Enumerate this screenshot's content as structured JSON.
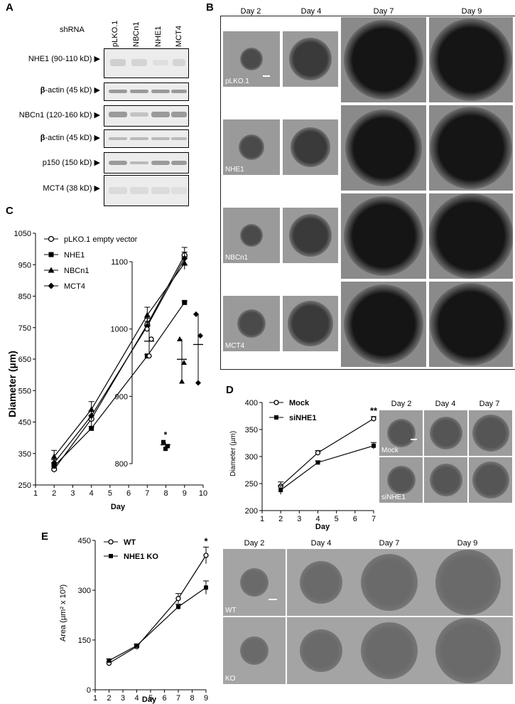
{
  "panelA": {
    "label": "A",
    "shrna_label": "shRNA",
    "lanes": [
      "pLKO.1",
      "NBCn1",
      "NHE1",
      "MCT4"
    ],
    "blots": [
      {
        "label": "NHE1 (90-110 kD) ▶"
      },
      {
        "label_bold": "β",
        "label": "-actin (45 kD) ▶"
      },
      {
        "label": "NBCn1 (120-160 kD) ▶"
      },
      {
        "label_bold": "β",
        "label": "-actin (45 kD) ▶"
      },
      {
        "label": "p150 (150 kD) ▶"
      },
      {
        "label": "MCT4 (38 kD) ▶"
      }
    ]
  },
  "panelB": {
    "label": "B",
    "days": [
      "Day 2",
      "Day 4",
      "Day 7",
      "Day 9"
    ],
    "rows": [
      "pLKO.1",
      "NHE1",
      "NBCn1",
      "MCT4"
    ]
  },
  "panelC": {
    "label": "C",
    "chart_data": {
      "type": "line",
      "xlabel": "Day",
      "ylabel": "Diameter (µm)",
      "xlim": [
        1,
        10
      ],
      "ylim": [
        250,
        1050
      ],
      "xticks": [
        1,
        2,
        3,
        4,
        5,
        6,
        7,
        8,
        9,
        10
      ],
      "yticks": [
        250,
        350,
        450,
        550,
        650,
        750,
        850,
        950,
        1050
      ],
      "x": [
        2,
        4,
        7,
        9
      ],
      "legend_position": "top-left",
      "series": [
        {
          "name": "pLKO.1 empty vector",
          "marker": "open-circle",
          "values": [
            300,
            460,
            760,
            980
          ],
          "errors": [
            10,
            25,
            20,
            25
          ]
        },
        {
          "name": "NHE1",
          "marker": "filled-square",
          "values": [
            310,
            430,
            660,
            830
          ],
          "errors": [
            5,
            5,
            5,
            5
          ]
        },
        {
          "name": "NBCn1",
          "marker": "filled-triangle",
          "values": [
            340,
            490,
            790,
            955
          ],
          "errors": [
            20,
            25,
            25,
            20
          ]
        },
        {
          "name": "MCT4",
          "marker": "filled-diamond",
          "values": [
            320,
            470,
            755,
            970
          ],
          "errors": [
            10,
            15,
            15,
            20
          ]
        }
      ],
      "inset": {
        "ylim": [
          800,
          1100
        ],
        "yticks": [
          800,
          900,
          1000,
          1100
        ],
        "groups": [
          {
            "marker": "open-circle",
            "points": [
              1000,
              985,
              960
            ],
            "mean": 982
          },
          {
            "marker": "filled-square",
            "points": [
              832,
              826,
              822
            ],
            "mean": 828,
            "annotation": "*"
          },
          {
            "marker": "filled-triangle",
            "points": [
              985,
              950,
              922
            ],
            "mean": 955
          },
          {
            "marker": "filled-diamond",
            "points": [
              1022,
              990,
              920
            ],
            "mean": 977
          }
        ]
      }
    }
  },
  "panelD": {
    "label": "D",
    "chart_data": {
      "type": "line",
      "xlabel": "Day",
      "ylabel": "Diameter (µm)",
      "xlim": [
        1,
        7
      ],
      "ylim": [
        200,
        400
      ],
      "xticks": [
        1,
        2,
        3,
        4,
        5,
        6,
        7
      ],
      "yticks": [
        200,
        250,
        300,
        350,
        400
      ],
      "x": [
        2,
        4,
        7
      ],
      "series": [
        {
          "name": "Mock",
          "marker": "open-circle",
          "values": [
            245,
            307,
            370
          ],
          "errors": [
            8,
            4,
            4
          ]
        },
        {
          "name": "siNHE1",
          "marker": "filled-square",
          "values": [
            238,
            289,
            320
          ],
          "errors": [
            8,
            3,
            6
          ]
        }
      ],
      "annotations": [
        {
          "x": 7,
          "text": "**"
        }
      ]
    },
    "days": [
      "Day 2",
      "Day 4",
      "Day 7"
    ],
    "rows": [
      "Mock",
      "siNHE1"
    ]
  },
  "panelE": {
    "label": "E",
    "chart_data": {
      "type": "line",
      "xlabel": "Day",
      "ylabel": "Area (µm² x 10³)",
      "xlim": [
        1,
        9
      ],
      "ylim": [
        0,
        450
      ],
      "xticks": [
        1,
        2,
        3,
        4,
        5,
        6,
        7,
        8,
        9
      ],
      "yticks": [
        0,
        150,
        300,
        450
      ],
      "x": [
        2,
        4,
        7,
        9
      ],
      "series": [
        {
          "name": "WT",
          "marker": "open-circle",
          "values": [
            80,
            130,
            275,
            405
          ],
          "errors": [
            5,
            5,
            15,
            25
          ]
        },
        {
          "name": "NHE1 KO",
          "marker": "filled-square",
          "values": [
            88,
            133,
            250,
            308
          ],
          "errors": [
            5,
            5,
            8,
            20
          ]
        }
      ],
      "annotations": [
        {
          "x": 9,
          "text": "*"
        }
      ]
    },
    "days": [
      "Day 2",
      "Day 4",
      "Day 7",
      "Day 9"
    ],
    "rows": [
      "WT",
      "KO"
    ]
  }
}
